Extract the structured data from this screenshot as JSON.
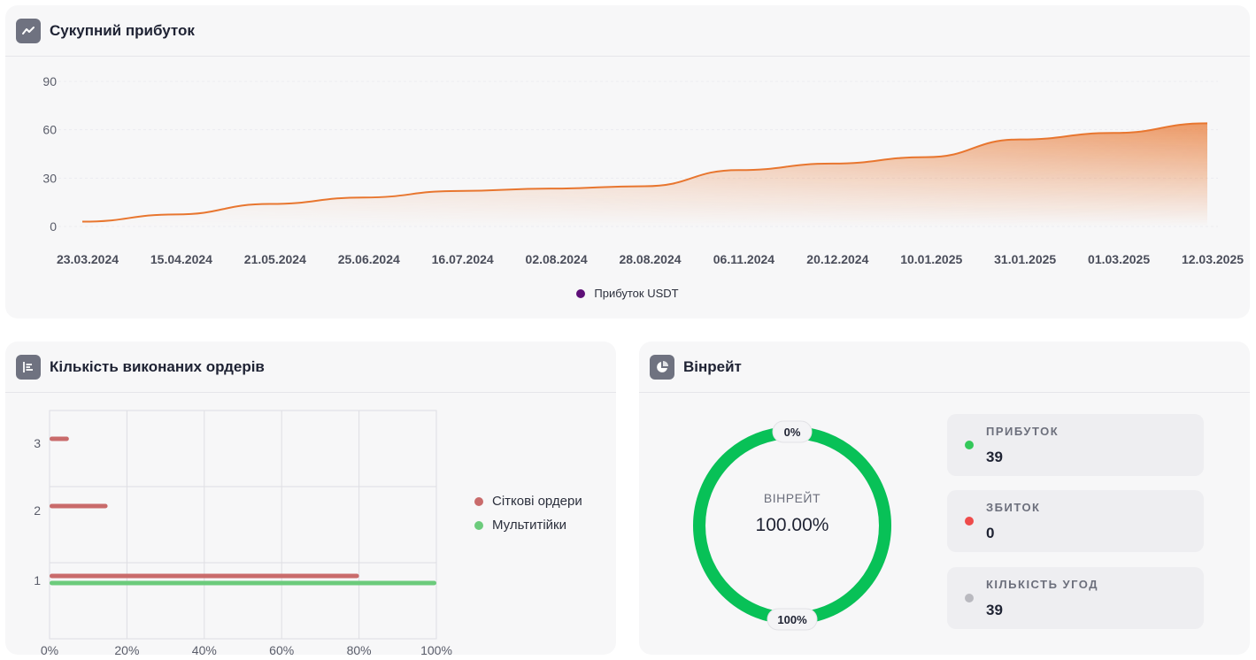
{
  "profit_card": {
    "title": "Сукупний прибуток",
    "icon": "trend-line-icon",
    "legend_label": "Прибуток USDT",
    "legend_color": "#5e0f78",
    "line_color": "#e8762f"
  },
  "orders_card": {
    "title": "Кількість виконаних ордерів",
    "icon": "bar-list-icon",
    "legend": [
      {
        "label": "Сіткові ордери",
        "color": "#c96b6b"
      },
      {
        "label": "Мультитійки",
        "color": "#6ccb7c"
      }
    ]
  },
  "winrate_card": {
    "title": "Вінрейт",
    "icon": "pie-chart-icon",
    "donut_label": "ВІНРЕЙТ",
    "donut_value": "100.00%",
    "top_badge": "0%",
    "bottom_badge": "100%",
    "ring_color": "#08c157",
    "stats": [
      {
        "label": "ПРИБУТОК",
        "value": "39",
        "color": "#34c85a"
      },
      {
        "label": "ЗБИТОК",
        "value": "0",
        "color": "#ee4b4b"
      },
      {
        "label": "КІЛЬКІСТЬ УГОД",
        "value": "39",
        "color": "#b9b9bf"
      }
    ]
  },
  "chart_data": [
    {
      "type": "area",
      "yticks": [
        0,
        30,
        60,
        90
      ],
      "ylim": [
        0,
        90
      ],
      "x_labels": [
        "23.03.2024",
        "15.04.2024",
        "21.05.2024",
        "25.06.2024",
        "16.07.2024",
        "02.08.2024",
        "28.08.2024",
        "06.11.2024",
        "20.12.2024",
        "10.01.2025",
        "31.01.2025",
        "01.03.2025",
        "12.03.2025"
      ],
      "series": [
        {
          "name": "Прибуток USDT",
          "values": [
            3,
            7.5,
            14,
            18,
            22,
            23.5,
            25,
            35,
            39,
            43,
            54,
            58,
            64
          ]
        }
      ]
    },
    {
      "type": "bar",
      "orientation": "horizontal",
      "categories": [
        "3",
        "2",
        "1"
      ],
      "xticks": [
        "0%",
        "20%",
        "40%",
        "60%",
        "80%",
        "100%"
      ],
      "xlim": [
        0,
        100
      ],
      "series": [
        {
          "name": "Сіткові ордери",
          "values": [
            5,
            15,
            80
          ]
        },
        {
          "name": "Мультитійки",
          "values": [
            0,
            0,
            100
          ]
        }
      ]
    },
    {
      "type": "pie",
      "labels": [
        "ПРИБУТОК",
        "ЗБИТОК"
      ],
      "values": [
        100,
        0
      ]
    }
  ]
}
